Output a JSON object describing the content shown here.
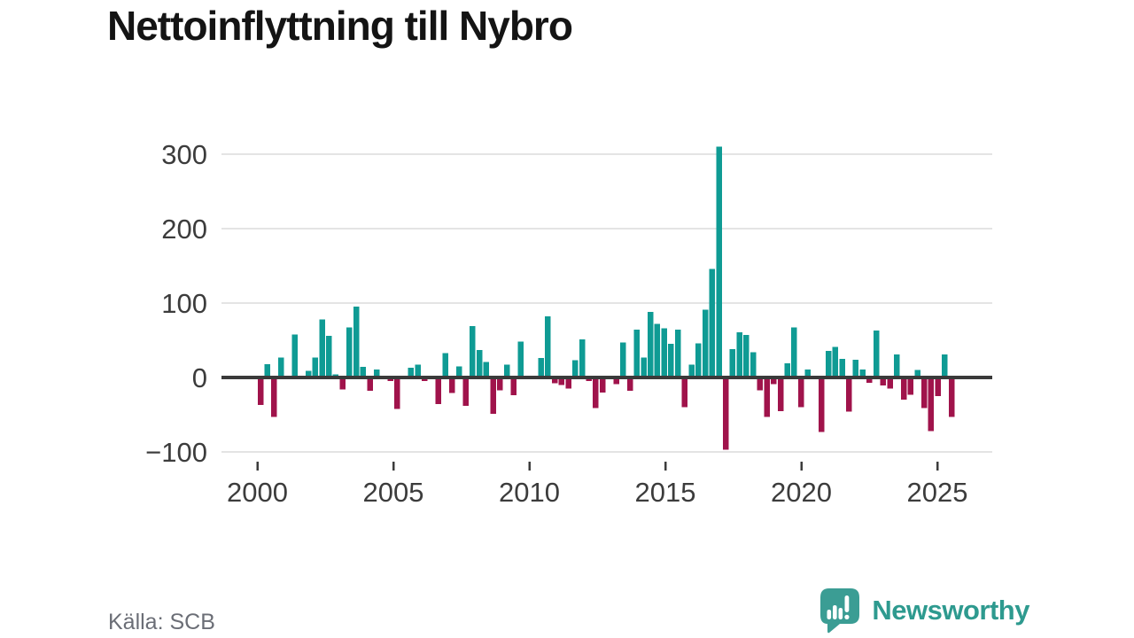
{
  "header": {
    "title": "Nettoinflyttning till Nybro"
  },
  "footer": {
    "source": "Källa: SCB",
    "brand_name": "Newsworthy"
  },
  "colors": {
    "positive": "#0f9b94",
    "negative": "#a0134b",
    "axis": "#3a3a3a",
    "grid": "#e4e4e4",
    "tick": "#3c3c3c",
    "title": "#141414",
    "source": "#6b6e76",
    "brand": "#2e9a8f",
    "logo_bubble": "#3b9d94"
  },
  "chart_data": {
    "type": "bar",
    "title": "Nettoinflyttning till Nybro",
    "source": "Källa: SCB",
    "frequency": "quarterly",
    "start_period": "2000Q1",
    "end_period": "2025Q2",
    "values": [
      -37,
      18,
      -53,
      27,
      0,
      58,
      0,
      9,
      27,
      78,
      56,
      4,
      -16,
      67,
      95,
      14,
      -18,
      11,
      0,
      -5,
      -42,
      0,
      13,
      17,
      -5,
      0,
      -36,
      33,
      -21,
      15,
      -38,
      69,
      37,
      21,
      -49,
      -17,
      17,
      -24,
      48,
      0,
      0,
      26,
      82,
      -8,
      -10,
      -15,
      23,
      51,
      -5,
      -41,
      -20,
      2,
      -9,
      47,
      -18,
      64,
      27,
      88,
      72,
      66,
      45,
      64,
      -40,
      17,
      46,
      91,
      146,
      310,
      -97,
      38,
      61,
      57,
      34,
      -17,
      -53,
      -9,
      -45,
      19,
      67,
      -40,
      11,
      0,
      -73,
      36,
      41,
      25,
      -46,
      24,
      11,
      -7,
      63,
      -11,
      -15,
      31,
      -30,
      -23,
      10,
      -41,
      -72,
      -25,
      31,
      -53
    ],
    "x_tick_labels": [
      "2000",
      "2005",
      "2010",
      "2015",
      "2020",
      "2025"
    ],
    "x_tick_years": [
      2000,
      2005,
      2010,
      2015,
      2020,
      2025
    ],
    "y_tick_values": [
      300,
      200,
      100,
      0,
      -100
    ],
    "y_tick_labels": [
      "300",
      "200",
      "100",
      "0",
      "−100"
    ],
    "ylim": [
      -110,
      320
    ],
    "grid": "horizontal",
    "legend": "none"
  }
}
